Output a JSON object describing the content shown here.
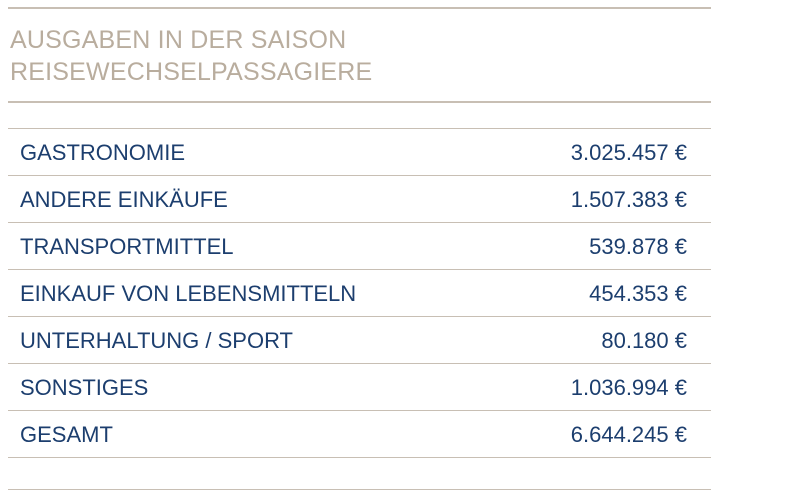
{
  "title": {
    "line1": "AUSGABEN IN DER SAISON",
    "line2": "REISEWECHSELPASSAGIERE"
  },
  "chart_data": {
    "type": "table",
    "title": "AUSGABEN IN DER SAISON REISEWECHSELPASSAGIERE",
    "rows": [
      {
        "label": "GASTRONOMIE",
        "value": "3.025.457 €"
      },
      {
        "label": "ANDERE EINKÄUFE",
        "value": "1.507.383 €"
      },
      {
        "label": "TRANSPORTMITTEL",
        "value": "539.878 €"
      },
      {
        "label": "EINKAUF VON LEBENSMITTELN",
        "value": "454.353 €"
      },
      {
        "label": "UNTERHALTUNG / SPORT",
        "value": "80.180 €"
      },
      {
        "label": "SONSTIGES",
        "value": "1.036.994 €"
      },
      {
        "label": "GESAMT",
        "value": "6.644.245 €"
      }
    ]
  },
  "colors": {
    "title": "#b9ad9e",
    "text": "#1c3e6e",
    "rule": "#c8bfb4"
  }
}
